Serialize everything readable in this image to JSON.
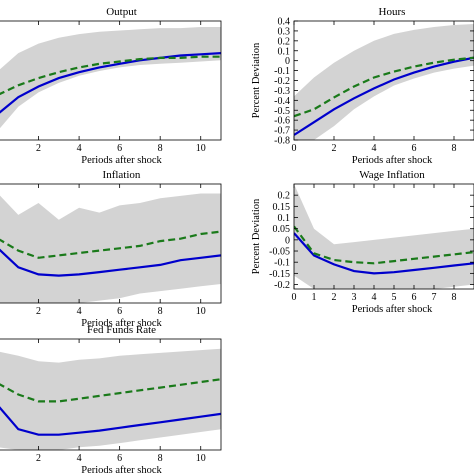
{
  "chart_data": [
    {
      "type": "line",
      "title": "Output",
      "xlabel": "Periods after shock",
      "ylabel": "",
      "xlim": [
        0,
        11
      ],
      "ylim": [
        -0.7,
        0.3
      ],
      "xticks": [
        2,
        4,
        6,
        8,
        10
      ],
      "yticks": [],
      "x": [
        0,
        1,
        2,
        3,
        4,
        5,
        6,
        7,
        8,
        9,
        10,
        11
      ],
      "band": {
        "lower": [
          -0.62,
          -0.42,
          -0.3,
          -0.22,
          -0.16,
          -0.12,
          -0.09,
          -0.07,
          -0.06,
          -0.05,
          -0.04,
          -0.03
        ],
        "upper": [
          -0.12,
          0.03,
          0.11,
          0.16,
          0.19,
          0.21,
          0.22,
          0.23,
          0.24,
          0.24,
          0.25,
          0.25
        ]
      },
      "series": [
        {
          "style": "solid",
          "color": "#0000cc",
          "values": [
            -0.48,
            -0.34,
            -0.25,
            -0.18,
            -0.13,
            -0.09,
            -0.06,
            -0.03,
            -0.01,
            0.01,
            0.02,
            0.03
          ]
        },
        {
          "style": "dashed",
          "color": "#1a7a1a",
          "values": [
            -0.32,
            -0.24,
            -0.18,
            -0.13,
            -0.09,
            -0.06,
            -0.04,
            -0.02,
            -0.01,
            -0.01,
            0.0,
            0.0
          ]
        }
      ]
    },
    {
      "type": "line",
      "title": "Hours",
      "xlabel": "Periods after shock",
      "ylabel": "Percent Deviation",
      "xlim": [
        0,
        9
      ],
      "ylim": [
        -0.8,
        0.4
      ],
      "xticks": [
        0,
        2,
        4,
        6,
        8
      ],
      "yticks": [
        -0.8,
        -0.7,
        -0.6,
        -0.5,
        -0.4,
        -0.3,
        -0.2,
        -0.1,
        0,
        0.1,
        0.2,
        0.3,
        0.4
      ],
      "x": [
        0,
        1,
        2,
        3,
        4,
        5,
        6,
        7,
        8,
        9
      ],
      "band": {
        "lower": [
          -0.8,
          -0.8,
          -0.66,
          -0.49,
          -0.36,
          -0.25,
          -0.18,
          -0.12,
          -0.08,
          -0.05
        ],
        "upper": [
          -0.36,
          -0.17,
          -0.02,
          0.1,
          0.2,
          0.27,
          0.31,
          0.34,
          0.36,
          0.37
        ]
      },
      "series": [
        {
          "style": "solid",
          "color": "#0000cc",
          "values": [
            -0.75,
            -0.62,
            -0.49,
            -0.38,
            -0.28,
            -0.19,
            -0.12,
            -0.06,
            -0.01,
            0.03
          ]
        },
        {
          "style": "dashed",
          "color": "#1a7a1a",
          "values": [
            -0.56,
            -0.49,
            -0.37,
            -0.26,
            -0.17,
            -0.11,
            -0.06,
            -0.02,
            0.01,
            0.03
          ]
        }
      ]
    },
    {
      "type": "line",
      "title": "Inflation",
      "xlabel": "Periods after shock",
      "ylabel": "",
      "xlim": [
        0,
        11
      ],
      "ylim": [
        -0.25,
        0.25
      ],
      "xticks": [
        2,
        4,
        6,
        8,
        10
      ],
      "yticks": [],
      "x": [
        0,
        1,
        2,
        3,
        4,
        5,
        6,
        7,
        8,
        9,
        10,
        11
      ],
      "band": {
        "lower": [
          -0.25,
          -0.25,
          -0.25,
          -0.25,
          -0.25,
          -0.24,
          -0.23,
          -0.21,
          -0.2,
          -0.19,
          -0.18,
          -0.17
        ],
        "upper": [
          0.21,
          0.12,
          0.17,
          0.1,
          0.15,
          0.13,
          0.16,
          0.17,
          0.19,
          0.2,
          0.21,
          0.21
        ]
      },
      "series": [
        {
          "style": "solid",
          "color": "#0000cc",
          "values": [
            -0.02,
            -0.1,
            -0.13,
            -0.135,
            -0.13,
            -0.12,
            -0.11,
            -0.1,
            -0.09,
            -0.07,
            -0.06,
            -0.05
          ]
        },
        {
          "style": "dashed",
          "color": "#1a7a1a",
          "values": [
            0.02,
            -0.03,
            -0.06,
            -0.05,
            -0.04,
            -0.03,
            -0.02,
            -0.01,
            0.01,
            0.02,
            0.04,
            0.05
          ]
        }
      ]
    },
    {
      "type": "line",
      "title": "Wage Inflation",
      "xlabel": "Periods after shock",
      "ylabel": "Percent Deviation",
      "xlim": [
        0,
        9
      ],
      "ylim": [
        -0.22,
        0.25
      ],
      "xticks": [
        0,
        1,
        2,
        3,
        4,
        5,
        6,
        7,
        8
      ],
      "yticks": [
        -0.2,
        -0.15,
        -0.1,
        -0.05,
        0,
        0.05,
        0.1,
        0.15,
        0.2
      ],
      "x": [
        0,
        1,
        2,
        3,
        4,
        5,
        6,
        7,
        8,
        9
      ],
      "band": {
        "lower": [
          -0.16,
          -0.22,
          -0.22,
          -0.22,
          -0.22,
          -0.22,
          -0.22,
          -0.22,
          -0.21,
          -0.2
        ],
        "upper": [
          0.25,
          0.05,
          -0.02,
          -0.01,
          0.0,
          0.01,
          0.02,
          0.03,
          0.04,
          0.05
        ]
      },
      "series": [
        {
          "style": "solid",
          "color": "#0000cc",
          "values": [
            0.03,
            -0.07,
            -0.11,
            -0.14,
            -0.15,
            -0.145,
            -0.135,
            -0.125,
            -0.115,
            -0.105
          ]
        },
        {
          "style": "dashed",
          "color": "#1a7a1a",
          "values": [
            0.06,
            -0.06,
            -0.09,
            -0.1,
            -0.105,
            -0.095,
            -0.085,
            -0.075,
            -0.065,
            -0.055
          ]
        }
      ]
    },
    {
      "type": "line",
      "title": "Fed Funds Rate",
      "xlabel": "Periods after shock",
      "ylabel": "",
      "xlim": [
        0,
        11
      ],
      "ylim": [
        -0.6,
        0.2
      ],
      "xticks": [
        2,
        4,
        6,
        8,
        10
      ],
      "yticks": [],
      "x": [
        0,
        1,
        2,
        3,
        4,
        5,
        6,
        7,
        8,
        9,
        10,
        11
      ],
      "band": {
        "lower": [
          -0.58,
          -0.6,
          -0.6,
          -0.6,
          -0.58,
          -0.57,
          -0.55,
          -0.53,
          -0.51,
          -0.49,
          -0.47,
          -0.45
        ],
        "upper": [
          0.11,
          0.08,
          0.04,
          0.03,
          0.05,
          0.06,
          0.08,
          0.09,
          0.1,
          0.11,
          0.12,
          0.13
        ]
      },
      "series": [
        {
          "style": "solid",
          "color": "#0000cc",
          "values": [
            -0.28,
            -0.45,
            -0.49,
            -0.49,
            -0.475,
            -0.46,
            -0.44,
            -0.42,
            -0.4,
            -0.38,
            -0.36,
            -0.34
          ]
        },
        {
          "style": "dashed",
          "color": "#1a7a1a",
          "values": [
            -0.12,
            -0.2,
            -0.25,
            -0.25,
            -0.23,
            -0.21,
            -0.19,
            -0.17,
            -0.15,
            -0.13,
            -0.11,
            -0.09
          ]
        }
      ]
    }
  ]
}
